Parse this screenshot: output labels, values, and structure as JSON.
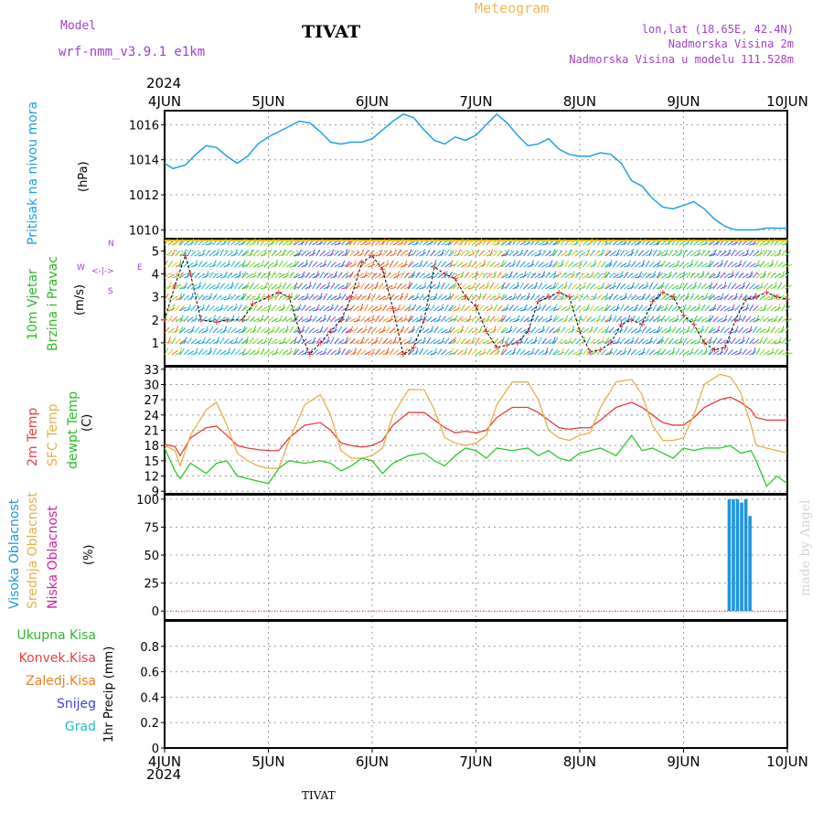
{
  "header": {
    "model_label": "Model",
    "model_value": "wrf-nmm_v3.9.1  e1km",
    "station": "TIVAT",
    "product": "Meteogram",
    "lonlat": "lon,lat (18.65E, 42.4N)",
    "elevation": "Nadmorska Visina 2m",
    "model_elevation": "Nadmorska Visina u modelu 111.528m",
    "year": "2024"
  },
  "footer": {
    "year": "2024",
    "station": "TIVAT",
    "credit": "made by Angel"
  },
  "dates": [
    "4JUN",
    "5JUN",
    "6JUN",
    "7JUN",
    "8JUN",
    "9JUN",
    "10JUN"
  ],
  "panel_labels": {
    "pressure": {
      "name": "Pritisak na nivou mora",
      "unit": "(hPa)"
    },
    "wind": {
      "name1": "10m Vjetar",
      "name2": "Brzina i Pravac",
      "unit": "(m/s)",
      "compass_w": "W",
      "compass_e": "E",
      "compass_s": "S",
      "compass_n": "N"
    },
    "temp": {
      "t2m": "2m Temp",
      "sfc": "SFC Temp",
      "dew": "dewpt Temp",
      "unit": "(C)"
    },
    "cloud": {
      "high": "Visoka Oblacnost",
      "mid": "Srednja Oblacnost",
      "low": "Niska Oblacnost",
      "unit": "(%)"
    },
    "precip": {
      "total": "Ukupna Kisa",
      "conv": "Konvek.Kisa",
      "frozen": "Zaledj.Kisa",
      "snow": "Snijeg",
      "hail": "Grad",
      "unit": "1hr Precip (mm)"
    }
  },
  "colors": {
    "pressure": "#1ea0e6",
    "t2m": "#e83c3c",
    "sfc": "#e8b04a",
    "dew": "#2ec82e",
    "cloud_high": "#1e96e0",
    "purple": "#a040d0",
    "orange_title": "#f0b850",
    "green": "#2eb82e",
    "red": "#e84040",
    "orange": "#f08020",
    "blue": "#4040e0",
    "teal": "#20c0c0"
  },
  "chart_data": [
    {
      "type": "line",
      "name": "pressure",
      "x_unit": "days from 4JUN 00UTC",
      "ylim": [
        1009.5,
        1016.8
      ],
      "yticks": [
        1010,
        1012,
        1014,
        1016
      ],
      "series": [
        {
          "x": [
            0,
            0.08,
            0.2,
            0.3,
            0.4,
            0.5,
            0.6,
            0.7,
            0.8,
            0.9,
            1.0,
            1.1,
            1.2,
            1.3,
            1.4,
            1.5,
            1.6,
            1.7,
            1.8,
            1.9,
            2.0,
            2.1,
            2.2,
            2.3,
            2.4,
            2.5,
            2.6,
            2.7,
            2.8,
            2.9,
            3.0,
            3.1,
            3.2,
            3.3,
            3.4,
            3.5,
            3.6,
            3.7,
            3.8,
            3.9,
            4.0,
            4.1,
            4.2,
            4.3,
            4.4,
            4.5,
            4.6,
            4.7,
            4.8,
            4.9,
            5.0,
            5.1,
            5.2,
            5.3,
            5.4,
            5.5,
            5.6,
            5.7,
            5.8,
            5.9,
            6.0
          ],
          "y": [
            1013.8,
            1013.5,
            1013.7,
            1014.3,
            1014.8,
            1014.7,
            1014.2,
            1013.8,
            1014.2,
            1014.9,
            1015.3,
            1015.6,
            1015.9,
            1016.2,
            1016.1,
            1015.6,
            1015.0,
            1014.9,
            1015.0,
            1015.0,
            1015.2,
            1015.7,
            1016.2,
            1016.6,
            1016.4,
            1015.7,
            1015.1,
            1014.9,
            1015.3,
            1015.1,
            1015.4,
            1016.0,
            1016.6,
            1016.1,
            1015.4,
            1014.8,
            1014.9,
            1015.2,
            1014.6,
            1014.3,
            1014.2,
            1014.2,
            1014.4,
            1014.3,
            1013.8,
            1012.8,
            1012.5,
            1011.8,
            1011.3,
            1011.2,
            1011.4,
            1011.6,
            1011.2,
            1010.6,
            1010.2,
            1010.0,
            1010.0,
            1010.0,
            1010.1,
            1010.1,
            1010.1
          ]
        }
      ]
    },
    {
      "type": "line",
      "name": "wind_speed",
      "ylim": [
        0,
        5.5
      ],
      "yticks": [
        1,
        2,
        3,
        4,
        5
      ],
      "series": [
        {
          "x": [
            0,
            0.1,
            0.2,
            0.25,
            0.35,
            0.5,
            0.6,
            0.75,
            0.85,
            1.0,
            1.1,
            1.2,
            1.3,
            1.4,
            1.5,
            1.6,
            1.7,
            1.8,
            1.9,
            2.0,
            2.1,
            2.2,
            2.3,
            2.4,
            2.5,
            2.6,
            2.7,
            2.8,
            2.9,
            3.0,
            3.1,
            3.2,
            3.3,
            3.4,
            3.5,
            3.6,
            3.7,
            3.8,
            3.9,
            4.0,
            4.1,
            4.2,
            4.3,
            4.4,
            4.5,
            4.6,
            4.7,
            4.8,
            4.9,
            5.0,
            5.1,
            5.2,
            5.3,
            5.4,
            5.5,
            5.6,
            5.7,
            5.8,
            5.9,
            6.0
          ],
          "y": [
            2.0,
            3.5,
            4.8,
            4.0,
            2.0,
            1.9,
            2.0,
            2.0,
            2.7,
            3.0,
            3.2,
            3.0,
            1.5,
            0.5,
            1.0,
            1.5,
            2.0,
            3.0,
            4.5,
            4.8,
            4.2,
            2.5,
            0.5,
            0.8,
            2.0,
            4.3,
            4.0,
            3.8,
            3.0,
            2.6,
            1.5,
            0.8,
            0.9,
            1.0,
            1.5,
            2.8,
            3.0,
            3.2,
            3.0,
            1.5,
            0.6,
            0.7,
            1.0,
            1.8,
            2.0,
            1.8,
            2.8,
            3.2,
            3.0,
            2.2,
            1.8,
            1.0,
            0.7,
            0.8,
            2.0,
            2.9,
            3.0,
            3.2,
            3.0,
            2.9
          ]
        }
      ]
    },
    {
      "type": "line",
      "name": "temperature",
      "ylim": [
        8.5,
        33.5
      ],
      "yticks": [
        9,
        12,
        15,
        18,
        21,
        24,
        27,
        30,
        33
      ],
      "x": [
        0,
        0.1,
        0.15,
        0.25,
        0.4,
        0.5,
        0.6,
        0.7,
        0.8,
        0.9,
        1.0,
        1.1,
        1.2,
        1.35,
        1.5,
        1.6,
        1.7,
        1.8,
        1.9,
        2.0,
        2.1,
        2.2,
        2.35,
        2.5,
        2.6,
        2.7,
        2.8,
        2.9,
        3.0,
        3.1,
        3.2,
        3.35,
        3.5,
        3.6,
        3.7,
        3.8,
        3.9,
        4.0,
        4.1,
        4.2,
        4.35,
        4.5,
        4.6,
        4.7,
        4.8,
        4.9,
        5.0,
        5.1,
        5.2,
        5.35,
        5.45,
        5.55,
        5.65,
        5.7,
        5.8,
        5.9,
        6.0
      ],
      "series": [
        {
          "name": "2m Temp",
          "values": [
            18.2,
            17.8,
            16.0,
            19.5,
            21.5,
            21.8,
            20.0,
            18.0,
            17.5,
            17.2,
            17.0,
            17.0,
            19.5,
            22.0,
            22.5,
            21.0,
            18.5,
            18.0,
            17.7,
            18.0,
            19.0,
            22.0,
            24.5,
            24.5,
            23.0,
            21.5,
            20.5,
            20.8,
            20.5,
            21.0,
            23.5,
            25.5,
            25.5,
            24.5,
            23.0,
            21.5,
            21.2,
            21.5,
            21.5,
            23.0,
            25.5,
            26.5,
            25.5,
            24.0,
            22.5,
            22.0,
            22.0,
            23.5,
            25.5,
            27.0,
            27.5,
            26.5,
            25.0,
            23.5,
            23.0,
            23.0,
            23.0
          ]
        },
        {
          "name": "SFC Temp",
          "values": [
            18.0,
            17.0,
            14.0,
            20.0,
            25.0,
            26.5,
            22.0,
            16.5,
            15.0,
            14.0,
            13.5,
            13.5,
            19.0,
            26.0,
            28.0,
            24.0,
            17.0,
            15.5,
            15.5,
            16.0,
            17.5,
            24.0,
            29.0,
            29.0,
            25.0,
            19.5,
            18.5,
            18.0,
            18.5,
            20.0,
            26.0,
            30.5,
            30.5,
            27.0,
            21.0,
            19.5,
            19.0,
            20.0,
            20.5,
            25.5,
            30.5,
            31.0,
            28.0,
            22.0,
            19.0,
            19.0,
            19.5,
            24.0,
            30.0,
            32.0,
            31.5,
            28.5,
            22.0,
            18.0,
            17.5,
            17.0,
            16.5
          ]
        },
        {
          "name": "dewpt Temp",
          "values": [
            17.5,
            13.0,
            11.5,
            14.5,
            12.5,
            14.5,
            15.0,
            12.0,
            11.5,
            11.0,
            10.5,
            13.5,
            15.0,
            14.5,
            15.0,
            14.5,
            13.0,
            14.0,
            15.5,
            15.0,
            12.5,
            14.5,
            16.0,
            16.5,
            15.0,
            14.0,
            16.0,
            17.5,
            17.0,
            15.5,
            17.5,
            17.0,
            17.5,
            16.0,
            17.0,
            15.5,
            15.0,
            16.5,
            17.0,
            17.5,
            16.0,
            20.0,
            17.0,
            17.5,
            16.5,
            15.5,
            17.5,
            17.0,
            17.5,
            17.5,
            18.0,
            16.5,
            17.0,
            15.0,
            10.0,
            12.0,
            10.5
          ]
        }
      ]
    },
    {
      "type": "bar",
      "name": "cloud_cover",
      "ylim": [
        -8,
        104
      ],
      "yticks": [
        0,
        25,
        50,
        75,
        100
      ],
      "series": [
        {
          "name": "Visoka Oblacnost",
          "x": [
            5.44,
            5.48,
            5.52,
            5.56,
            5.6,
            5.64
          ],
          "values": [
            100,
            100,
            100,
            97,
            100,
            85
          ]
        }
      ]
    },
    {
      "type": "bar",
      "name": "precipitation",
      "ylim": [
        0,
        1.0
      ],
      "yticks": [
        0,
        0.2,
        0.4,
        0.6,
        0.8
      ],
      "series": []
    }
  ]
}
